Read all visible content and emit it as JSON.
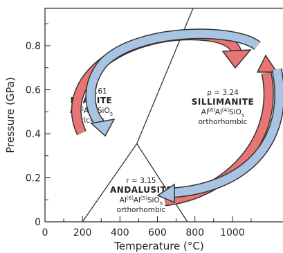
{
  "chart_data": {
    "type": "phase-diagram",
    "xlabel": "Temperature (°C)",
    "ylabel": "Pressure (GPa)",
    "xlim": [
      0,
      1270
    ],
    "ylim": [
      0,
      0.97
    ],
    "xticks": [
      0,
      200,
      400,
      600,
      800,
      1000
    ],
    "yticks": [
      0,
      0.2,
      0.4,
      0.6,
      0.8
    ],
    "xminorticks": [
      100,
      300,
      500,
      700,
      900,
      1100
    ],
    "yminorticks": [
      0.1,
      0.3,
      0.5,
      0.7,
      0.9
    ],
    "line_color": "#333333",
    "lines": [
      {
        "x": [
          200,
          490
        ],
        "y": [
          0,
          0.355
        ]
      },
      {
        "x": [
          490,
          760
        ],
        "y": [
          0.355,
          0
        ]
      },
      {
        "x": [
          490,
          790
        ],
        "y": [
          0.355,
          0.97
        ]
      }
    ],
    "annotations": [
      {
        "lines": [
          [
            {
              "t": "ρ = 3.61"
            }
          ],
          [
            {
              "t": "KYANITE",
              "bold": true
            }
          ],
          [
            {
              "t": "Al"
            },
            {
              "t": "[6]",
              "sup": true
            },
            {
              "t": "Al"
            },
            {
              "t": "[6]",
              "sup": true
            },
            {
              "t": "SiO"
            },
            {
              "t": "5",
              "sub": true
            }
          ],
          [
            {
              "t": "triclinic"
            }
          ]
        ]
      },
      {
        "lines": [
          [
            {
              "t": "ρ = 3.24"
            }
          ],
          [
            {
              "t": "SILLIMANITE",
              "bold": true
            }
          ],
          [
            {
              "t": "Al"
            },
            {
              "t": "[6]",
              "sup": true
            },
            {
              "t": "Al"
            },
            {
              "t": "[4]",
              "sup": true
            },
            {
              "t": "SiO"
            },
            {
              "t": "5",
              "sub": true
            }
          ],
          [
            {
              "t": "orthorhombic"
            }
          ]
        ]
      },
      {
        "lines": [
          [
            {
              "t": "r = 3.15"
            }
          ],
          [
            {
              "t": "ANDALUSITE",
              "bold": true
            }
          ],
          [
            {
              "t": "Al"
            },
            {
              "t": "[6]",
              "sup": true
            },
            {
              "t": "Al"
            },
            {
              "t": "[5]",
              "sup": true
            },
            {
              "t": "SiO"
            },
            {
              "t": "5",
              "sub": true
            }
          ],
          [
            {
              "t": "orthorhombic"
            }
          ]
        ]
      }
    ]
  }
}
